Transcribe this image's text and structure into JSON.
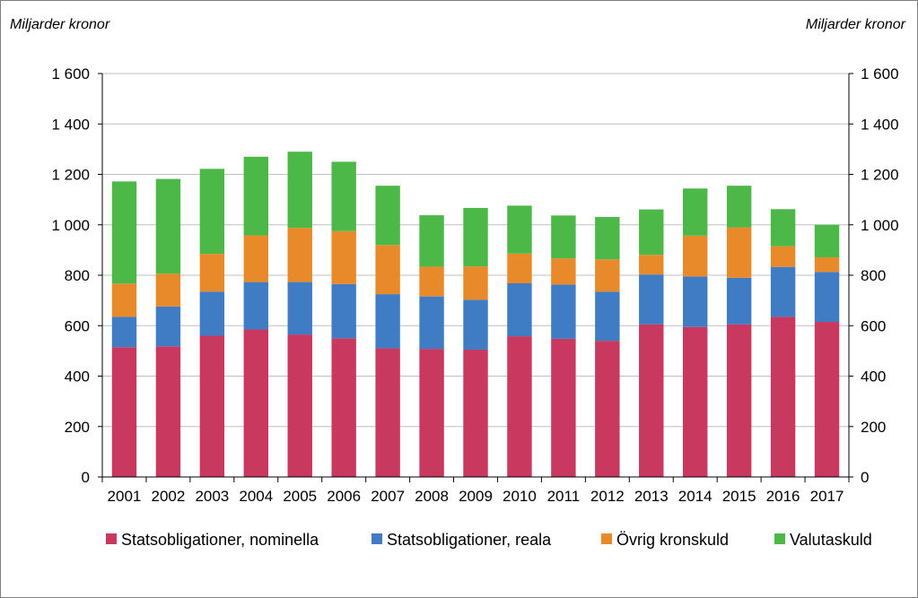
{
  "chart_data": {
    "type": "bar",
    "stacked": true,
    "left_unit_label": "Miljarder kronor",
    "right_unit_label": "Miljarder kronor",
    "ylim": [
      0,
      1600
    ],
    "y_ticks": [
      0,
      200,
      400,
      600,
      800,
      1000,
      1200,
      1400,
      1600
    ],
    "y_tick_labels": [
      "0",
      "200",
      "400",
      "600",
      "800",
      "1 000",
      "1 200",
      "1 400",
      "1 600"
    ],
    "categories": [
      "2001",
      "2002",
      "2003",
      "2004",
      "2005",
      "2006",
      "2007",
      "2008",
      "2009",
      "2010",
      "2011",
      "2012",
      "2013",
      "2014",
      "2015",
      "2016",
      "2017"
    ],
    "series": [
      {
        "name": "Statsobligationer, nominella",
        "color": "#c8385f",
        "values": [
          515,
          518,
          560,
          585,
          565,
          550,
          510,
          508,
          505,
          558,
          548,
          540,
          605,
          595,
          605,
          635,
          615
        ]
      },
      {
        "name": "Statsobligationer, reala",
        "color": "#3f7cc4",
        "values": [
          120,
          158,
          175,
          188,
          208,
          215,
          215,
          208,
          198,
          210,
          215,
          195,
          198,
          200,
          185,
          198,
          198
        ]
      },
      {
        "name": "Övrig kronskuld",
        "color": "#e8892a",
        "values": [
          132,
          130,
          150,
          185,
          215,
          210,
          195,
          118,
          132,
          118,
          104,
          128,
          78,
          162,
          200,
          82,
          58
        ]
      },
      {
        "name": "Valutaskuld",
        "color": "#4cb848",
        "values": [
          405,
          376,
          337,
          312,
          302,
          275,
          235,
          204,
          232,
          190,
          170,
          168,
          180,
          187,
          165,
          147,
          129
        ]
      }
    ],
    "legend_position": "bottom",
    "grid": true
  }
}
